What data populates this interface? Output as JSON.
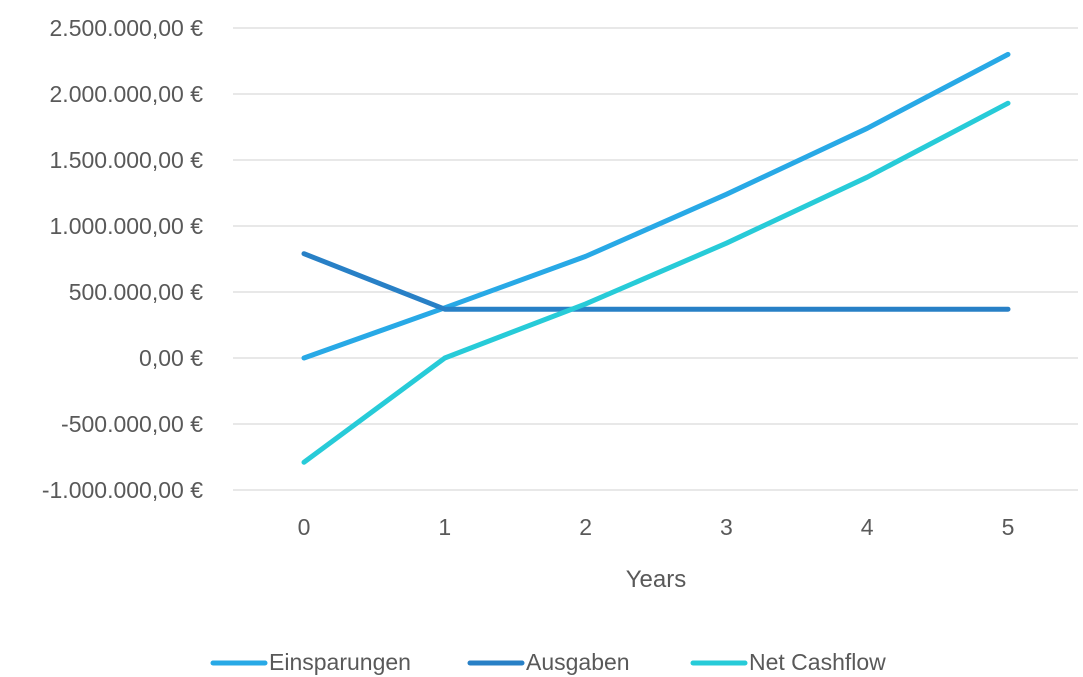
{
  "chart_data": {
    "type": "line",
    "title": "",
    "xlabel": "Years",
    "ylabel": "",
    "x": [
      0,
      1,
      2,
      3,
      4,
      5
    ],
    "x_tick_labels": [
      "0",
      "1",
      "2",
      "3",
      "4",
      "5"
    ],
    "y_ticks": [
      -1000000,
      -500000,
      0,
      500000,
      1000000,
      1500000,
      2000000,
      2500000
    ],
    "y_tick_labels": [
      "-1.000.000,00 €",
      "-500.000,00 €",
      "0,00 €",
      "500.000,00 €",
      "1.000.000,00 €",
      "1.500.000,00 €",
      "2.000.000,00 €",
      "2.500.000,00 €"
    ],
    "ylim": [
      -1000000,
      2500000
    ],
    "grid": "horizontal",
    "legend_position": "bottom",
    "series": [
      {
        "name": "Einsparungen",
        "color": "#28a9e6",
        "values": [
          0,
          380000,
          770000,
          1240000,
          1740000,
          2300000
        ]
      },
      {
        "name": "Ausgaben",
        "color": "#2880c6",
        "values": [
          790000,
          370000,
          370000,
          370000,
          370000,
          370000
        ]
      },
      {
        "name": "Net Cashflow",
        "color": "#27cbd8",
        "values": [
          -790000,
          0,
          410000,
          870000,
          1370000,
          1930000
        ]
      }
    ]
  }
}
